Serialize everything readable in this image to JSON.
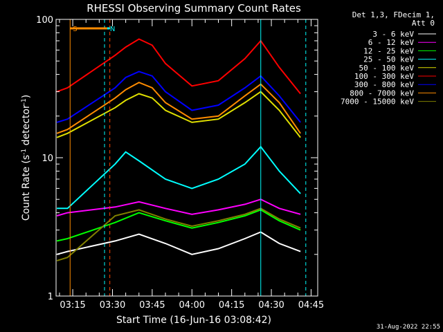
{
  "chart_data": {
    "type": "line",
    "title": "RHESSI Observing Summary Count Rates",
    "xlabel": "Start Time (16-Jun-16 03:08:42)",
    "ylabel_text": "Count Rate (s",
    "ylabel_exp": "-1",
    "ylabel_unit": " detector",
    "ylabel_tail": ")",
    "yscale": "log",
    "ylim": [
      1,
      100
    ],
    "y_ticks": [
      {
        "value": 1,
        "label": "1"
      },
      {
        "value": 10,
        "label": "10"
      },
      {
        "value": 100,
        "label": "100"
      }
    ],
    "x_ticks": [
      "03:15",
      "03:30",
      "03:45",
      "04:00",
      "04:15",
      "04:30",
      "04:45"
    ],
    "xlim": [
      "03:08:42",
      "04:47:30"
    ],
    "legend_header": [
      "Det 1,3, FDecim 1,",
      "Att 0"
    ],
    "legend_position": "top-right, outside plot",
    "flags": [
      {
        "label": "S",
        "color": "#ff8c00",
        "start": "03:14",
        "end": "03:28"
      },
      {
        "label": "N",
        "color": "#00ffff",
        "start": "03:28",
        "end": "03:29"
      }
    ],
    "vertical_markers": [
      {
        "time": "03:14",
        "color": "#ff8c00",
        "style": "solid"
      },
      {
        "time": "03:27",
        "color": "#00ffff",
        "style": "dashed"
      },
      {
        "time": "03:29",
        "color": "#ff4500",
        "style": "dashed"
      },
      {
        "time": "04:26",
        "color": "#00ffff",
        "style": "solid"
      },
      {
        "time": "04:43",
        "color": "#00ffff",
        "style": "dashed"
      }
    ],
    "series": [
      {
        "name": "3 - 6 keV",
        "color": "#ffffff",
        "x": [
          "03:09",
          "03:13",
          "03:31",
          "03:40",
          "03:50",
          "04:00",
          "04:10",
          "04:20",
          "04:26",
          "04:33",
          "04:41"
        ],
        "y": [
          2.0,
          2.1,
          2.5,
          2.8,
          2.4,
          2.0,
          2.2,
          2.6,
          2.9,
          2.4,
          2.1
        ]
      },
      {
        "name": "6 - 12 keV",
        "color": "#ff00ff",
        "x": [
          "03:09",
          "03:13",
          "03:31",
          "03:40",
          "03:50",
          "04:00",
          "04:10",
          "04:20",
          "04:26",
          "04:33",
          "04:41"
        ],
        "y": [
          3.8,
          4.0,
          4.4,
          4.8,
          4.3,
          3.9,
          4.2,
          4.6,
          5.0,
          4.3,
          3.9
        ]
      },
      {
        "name": "12 - 25 keV",
        "color": "#00ff00",
        "x": [
          "03:09",
          "03:13",
          "03:31",
          "03:40",
          "03:50",
          "04:00",
          "04:10",
          "04:20",
          "04:26",
          "04:33",
          "04:41"
        ],
        "y": [
          2.5,
          2.6,
          3.4,
          4.0,
          3.5,
          3.1,
          3.4,
          3.8,
          4.2,
          3.5,
          3.0
        ]
      },
      {
        "name": "25 - 50 keV",
        "color": "#00ffff",
        "x": [
          "03:09",
          "03:13",
          "03:31",
          "03:35",
          "03:40",
          "03:50",
          "04:00",
          "04:10",
          "04:20",
          "04:26",
          "04:33",
          "04:41"
        ],
        "y": [
          4.3,
          4.3,
          9.0,
          11.0,
          9.5,
          7.0,
          6.0,
          7.0,
          9.0,
          12.0,
          8.0,
          5.5
        ]
      },
      {
        "name": "50 - 100 keV",
        "color": "#e0e000",
        "x": [
          "03:09",
          "03:13",
          "03:31",
          "03:35",
          "03:40",
          "03:45",
          "03:50",
          "04:00",
          "04:10",
          "04:20",
          "04:26",
          "04:33",
          "04:41"
        ],
        "y": [
          14,
          15,
          23,
          26,
          29,
          27,
          22,
          18,
          19,
          25,
          30,
          22,
          14
        ]
      },
      {
        "name": "100 - 300 keV",
        "color": "#ff0000",
        "x": [
          "03:09",
          "03:13",
          "03:31",
          "03:35",
          "03:40",
          "03:45",
          "03:50",
          "04:00",
          "04:10",
          "04:20",
          "04:26",
          "04:33",
          "04:41"
        ],
        "y": [
          30,
          32,
          55,
          63,
          72,
          65,
          48,
          33,
          36,
          52,
          70,
          45,
          29
        ]
      },
      {
        "name": "300 - 800 keV",
        "color": "#0000ff",
        "x": [
          "03:09",
          "03:13",
          "03:31",
          "03:35",
          "03:40",
          "03:45",
          "03:50",
          "04:00",
          "04:10",
          "04:20",
          "04:26",
          "04:33",
          "04:41"
        ],
        "y": [
          18,
          19,
          32,
          38,
          42,
          39,
          30,
          22,
          24,
          32,
          39,
          28,
          18
        ]
      },
      {
        "name": "800 - 7000 keV",
        "color": "#ff8c00",
        "x": [
          "03:09",
          "03:13",
          "03:31",
          "03:35",
          "03:40",
          "03:45",
          "03:50",
          "04:00",
          "04:10",
          "04:20",
          "04:26",
          "04:33",
          "04:41"
        ],
        "y": [
          15,
          16,
          27,
          31,
          35,
          32,
          25,
          19,
          20,
          28,
          34,
          25,
          15
        ]
      },
      {
        "name": "7000 - 15000 keV",
        "color": "#808000",
        "x": [
          "03:09",
          "03:13",
          "03:31",
          "03:40",
          "03:50",
          "04:00",
          "04:10",
          "04:20",
          "04:26",
          "04:33",
          "04:41"
        ],
        "y": [
          1.8,
          1.9,
          3.8,
          4.2,
          3.6,
          3.2,
          3.5,
          3.9,
          4.3,
          3.6,
          3.1
        ]
      }
    ]
  },
  "footer_date": "31-Aug-2022 22:55"
}
